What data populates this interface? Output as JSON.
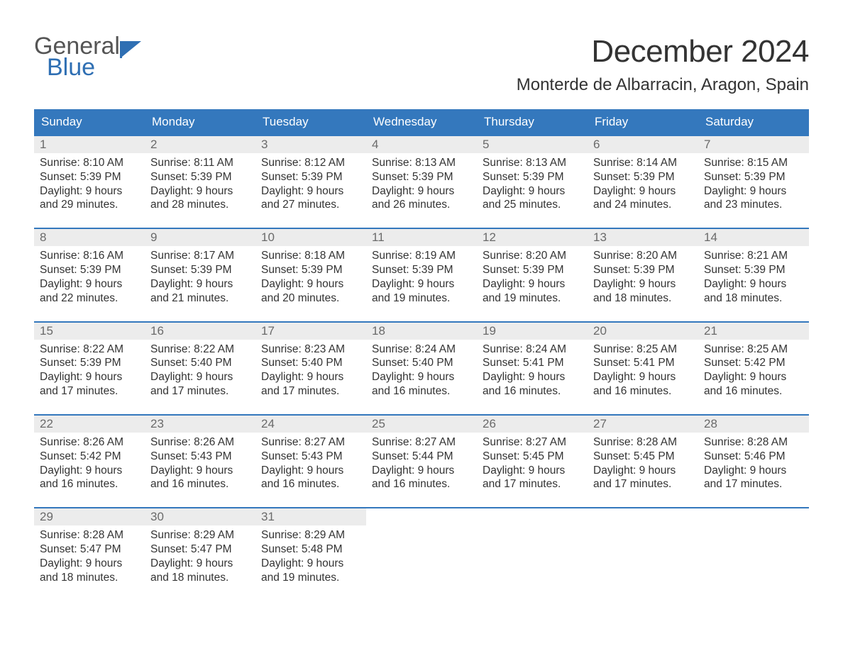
{
  "brand": {
    "word1": "General",
    "word2": "Blue",
    "accent_color": "#2f6fb3",
    "text_color": "#555555"
  },
  "title": "December 2024",
  "location": "Monterde de Albarracin, Aragon, Spain",
  "colors": {
    "header_bg": "#3478bd",
    "header_text": "#ffffff",
    "week_border": "#3478bd",
    "daynum_bg": "#ececec",
    "daynum_text": "#6a6a6a",
    "body_text": "#333333",
    "page_bg": "#ffffff"
  },
  "day_names": [
    "Sunday",
    "Monday",
    "Tuesday",
    "Wednesday",
    "Thursday",
    "Friday",
    "Saturday"
  ],
  "weeks": [
    [
      {
        "day": "1",
        "sunrise": "Sunrise: 8:10 AM",
        "sunset": "Sunset: 5:39 PM",
        "dl1": "Daylight: 9 hours",
        "dl2": "and 29 minutes."
      },
      {
        "day": "2",
        "sunrise": "Sunrise: 8:11 AM",
        "sunset": "Sunset: 5:39 PM",
        "dl1": "Daylight: 9 hours",
        "dl2": "and 28 minutes."
      },
      {
        "day": "3",
        "sunrise": "Sunrise: 8:12 AM",
        "sunset": "Sunset: 5:39 PM",
        "dl1": "Daylight: 9 hours",
        "dl2": "and 27 minutes."
      },
      {
        "day": "4",
        "sunrise": "Sunrise: 8:13 AM",
        "sunset": "Sunset: 5:39 PM",
        "dl1": "Daylight: 9 hours",
        "dl2": "and 26 minutes."
      },
      {
        "day": "5",
        "sunrise": "Sunrise: 8:13 AM",
        "sunset": "Sunset: 5:39 PM",
        "dl1": "Daylight: 9 hours",
        "dl2": "and 25 minutes."
      },
      {
        "day": "6",
        "sunrise": "Sunrise: 8:14 AM",
        "sunset": "Sunset: 5:39 PM",
        "dl1": "Daylight: 9 hours",
        "dl2": "and 24 minutes."
      },
      {
        "day": "7",
        "sunrise": "Sunrise: 8:15 AM",
        "sunset": "Sunset: 5:39 PM",
        "dl1": "Daylight: 9 hours",
        "dl2": "and 23 minutes."
      }
    ],
    [
      {
        "day": "8",
        "sunrise": "Sunrise: 8:16 AM",
        "sunset": "Sunset: 5:39 PM",
        "dl1": "Daylight: 9 hours",
        "dl2": "and 22 minutes."
      },
      {
        "day": "9",
        "sunrise": "Sunrise: 8:17 AM",
        "sunset": "Sunset: 5:39 PM",
        "dl1": "Daylight: 9 hours",
        "dl2": "and 21 minutes."
      },
      {
        "day": "10",
        "sunrise": "Sunrise: 8:18 AM",
        "sunset": "Sunset: 5:39 PM",
        "dl1": "Daylight: 9 hours",
        "dl2": "and 20 minutes."
      },
      {
        "day": "11",
        "sunrise": "Sunrise: 8:19 AM",
        "sunset": "Sunset: 5:39 PM",
        "dl1": "Daylight: 9 hours",
        "dl2": "and 19 minutes."
      },
      {
        "day": "12",
        "sunrise": "Sunrise: 8:20 AM",
        "sunset": "Sunset: 5:39 PM",
        "dl1": "Daylight: 9 hours",
        "dl2": "and 19 minutes."
      },
      {
        "day": "13",
        "sunrise": "Sunrise: 8:20 AM",
        "sunset": "Sunset: 5:39 PM",
        "dl1": "Daylight: 9 hours",
        "dl2": "and 18 minutes."
      },
      {
        "day": "14",
        "sunrise": "Sunrise: 8:21 AM",
        "sunset": "Sunset: 5:39 PM",
        "dl1": "Daylight: 9 hours",
        "dl2": "and 18 minutes."
      }
    ],
    [
      {
        "day": "15",
        "sunrise": "Sunrise: 8:22 AM",
        "sunset": "Sunset: 5:39 PM",
        "dl1": "Daylight: 9 hours",
        "dl2": "and 17 minutes."
      },
      {
        "day": "16",
        "sunrise": "Sunrise: 8:22 AM",
        "sunset": "Sunset: 5:40 PM",
        "dl1": "Daylight: 9 hours",
        "dl2": "and 17 minutes."
      },
      {
        "day": "17",
        "sunrise": "Sunrise: 8:23 AM",
        "sunset": "Sunset: 5:40 PM",
        "dl1": "Daylight: 9 hours",
        "dl2": "and 17 minutes."
      },
      {
        "day": "18",
        "sunrise": "Sunrise: 8:24 AM",
        "sunset": "Sunset: 5:40 PM",
        "dl1": "Daylight: 9 hours",
        "dl2": "and 16 minutes."
      },
      {
        "day": "19",
        "sunrise": "Sunrise: 8:24 AM",
        "sunset": "Sunset: 5:41 PM",
        "dl1": "Daylight: 9 hours",
        "dl2": "and 16 minutes."
      },
      {
        "day": "20",
        "sunrise": "Sunrise: 8:25 AM",
        "sunset": "Sunset: 5:41 PM",
        "dl1": "Daylight: 9 hours",
        "dl2": "and 16 minutes."
      },
      {
        "day": "21",
        "sunrise": "Sunrise: 8:25 AM",
        "sunset": "Sunset: 5:42 PM",
        "dl1": "Daylight: 9 hours",
        "dl2": "and 16 minutes."
      }
    ],
    [
      {
        "day": "22",
        "sunrise": "Sunrise: 8:26 AM",
        "sunset": "Sunset: 5:42 PM",
        "dl1": "Daylight: 9 hours",
        "dl2": "and 16 minutes."
      },
      {
        "day": "23",
        "sunrise": "Sunrise: 8:26 AM",
        "sunset": "Sunset: 5:43 PM",
        "dl1": "Daylight: 9 hours",
        "dl2": "and 16 minutes."
      },
      {
        "day": "24",
        "sunrise": "Sunrise: 8:27 AM",
        "sunset": "Sunset: 5:43 PM",
        "dl1": "Daylight: 9 hours",
        "dl2": "and 16 minutes."
      },
      {
        "day": "25",
        "sunrise": "Sunrise: 8:27 AM",
        "sunset": "Sunset: 5:44 PM",
        "dl1": "Daylight: 9 hours",
        "dl2": "and 16 minutes."
      },
      {
        "day": "26",
        "sunrise": "Sunrise: 8:27 AM",
        "sunset": "Sunset: 5:45 PM",
        "dl1": "Daylight: 9 hours",
        "dl2": "and 17 minutes."
      },
      {
        "day": "27",
        "sunrise": "Sunrise: 8:28 AM",
        "sunset": "Sunset: 5:45 PM",
        "dl1": "Daylight: 9 hours",
        "dl2": "and 17 minutes."
      },
      {
        "day": "28",
        "sunrise": "Sunrise: 8:28 AM",
        "sunset": "Sunset: 5:46 PM",
        "dl1": "Daylight: 9 hours",
        "dl2": "and 17 minutes."
      }
    ],
    [
      {
        "day": "29",
        "sunrise": "Sunrise: 8:28 AM",
        "sunset": "Sunset: 5:47 PM",
        "dl1": "Daylight: 9 hours",
        "dl2": "and 18 minutes."
      },
      {
        "day": "30",
        "sunrise": "Sunrise: 8:29 AM",
        "sunset": "Sunset: 5:47 PM",
        "dl1": "Daylight: 9 hours",
        "dl2": "and 18 minutes."
      },
      {
        "day": "31",
        "sunrise": "Sunrise: 8:29 AM",
        "sunset": "Sunset: 5:48 PM",
        "dl1": "Daylight: 9 hours",
        "dl2": "and 19 minutes."
      },
      null,
      null,
      null,
      null
    ]
  ]
}
